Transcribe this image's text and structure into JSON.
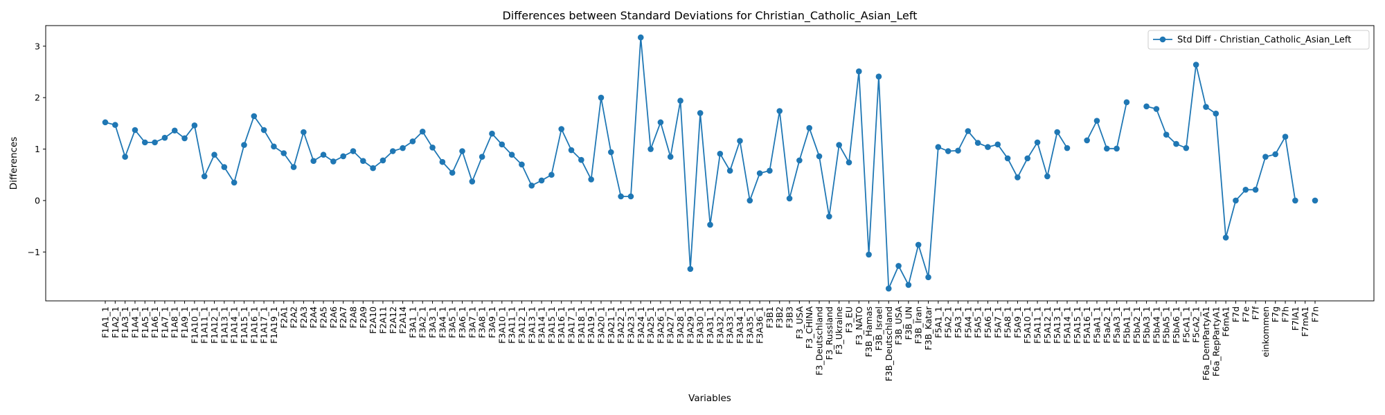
{
  "chart_data": {
    "type": "line",
    "title": "Differences between Standard Deviations for Christian_Catholic_Asian_Left",
    "xlabel": "Variables",
    "ylabel": "Differences",
    "ylim": [
      -1.95,
      3.4
    ],
    "yticks": [
      -1,
      0,
      1,
      2,
      3
    ],
    "ytick_labels": [
      "−1",
      "0",
      "1",
      "2",
      "3"
    ],
    "grid": false,
    "legend_position": "top-right",
    "color": "#1f77b4",
    "categories": [
      "F1A1_1",
      "F1A2_1",
      "F1A3_1",
      "F1A4_1",
      "F1A5_1",
      "F1A6_1",
      "F1A7_1",
      "F1A8_1",
      "F1A9_1",
      "F1A10_1",
      "F1A11_1",
      "F1A12_1",
      "F1A13_1",
      "F1A14_1",
      "F1A15_1",
      "F1A16_1",
      "F1A17_1",
      "F1A19_1",
      "F2A1",
      "F2A2",
      "F2A3",
      "F2A4",
      "F2A5",
      "F2A6",
      "F2A7",
      "F2A8",
      "F2A9",
      "F2A10",
      "F2A11",
      "F2A12",
      "F2A14",
      "F3A1_1",
      "F3A2_1",
      "F3A3_1",
      "F3A4_1",
      "F3A5_1",
      "F3A6_1",
      "F3A7_1",
      "F3A8_1",
      "F3A9_1",
      "F3A10_1",
      "F3A11_1",
      "F3A12_1",
      "F3A13_1",
      "F3A14_1",
      "F3A15_1",
      "F3A16_1",
      "F3A17_1",
      "F3A18_1",
      "F3A19_1",
      "F3A20_1",
      "F3A21_1",
      "F3A22_1",
      "F3A23_1",
      "F3A24_1",
      "F3A25_1",
      "F3A26_1",
      "F3A27_1",
      "F3A28_1",
      "F3A29_1",
      "F3A30_1",
      "F3A31_1",
      "F3A32_1",
      "F3A33_1",
      "F3A34_1",
      "F3A35_1",
      "F3A36_1",
      "F3B1",
      "F3B2",
      "F3B3",
      "F3_USA",
      "F3_CHINA",
      "F3_Deutschland",
      "F3_Russland",
      "F3_Ukraine",
      "F3_EU",
      "F3_NATO",
      "F3B_Hamas",
      "F3B_Israel",
      "F3B_Deutschland",
      "F3B_USA",
      "F3B_UN",
      "F3B_Iran",
      "F3B_Katar",
      "F5A1_1",
      "F5A2_1",
      "F5A3_1",
      "F5A4_1",
      "F5A5_1",
      "F5A6_1",
      "F5A7_1",
      "F5A8_1",
      "F5A9_1",
      "F5A10_1",
      "F5A11_1",
      "F5A12_1",
      "F5A13_1",
      "F5A14_1",
      "F5A15_1",
      "F5A16_1",
      "F5aA1_1",
      "F5aA2_1",
      "F5aA3_1",
      "F5bA1_1",
      "F5bA2_1",
      "F5bA3_1",
      "F5bA4_1",
      "F5bA5_1",
      "F5bA6_1",
      "F5cA1_1",
      "F5cA2_1",
      "F6a_DemPartyA1",
      "F6a_RepPartyA1",
      "F6mA1",
      "F7d",
      "F7e",
      "F7f",
      "einkommen",
      "F7g",
      "F7h",
      "F7lA1",
      "F7mA1",
      "F7n"
    ],
    "series": [
      {
        "name": "Std Diff - Christian_Catholic_Asian_Left",
        "values": [
          1.52,
          1.47,
          0.85,
          1.37,
          1.13,
          1.13,
          1.22,
          1.36,
          1.21,
          1.46,
          0.47,
          0.89,
          0.65,
          0.35,
          1.08,
          1.64,
          1.37,
          1.05,
          0.92,
          0.65,
          1.33,
          0.77,
          0.89,
          0.76,
          0.86,
          0.96,
          0.77,
          0.63,
          0.78,
          0.96,
          1.02,
          1.15,
          1.34,
          1.03,
          0.75,
          0.54,
          0.96,
          0.37,
          0.85,
          1.3,
          1.09,
          0.89,
          0.7,
          0.29,
          0.39,
          0.5,
          1.39,
          0.98,
          0.79,
          0.41,
          2.0,
          0.94,
          0.08,
          0.08,
          3.17,
          1.0,
          1.52,
          0.85,
          1.94,
          -1.33,
          1.7,
          -0.47,
          0.91,
          0.58,
          1.16,
          0.0,
          0.53,
          0.58,
          1.74,
          0.04,
          0.78,
          1.41,
          0.86,
          -0.31,
          1.08,
          0.74,
          2.51,
          -1.05,
          2.41,
          -1.71,
          -1.27,
          -1.64,
          -0.86,
          -1.49,
          1.04,
          0.96,
          0.97,
          1.35,
          1.12,
          1.04,
          1.09,
          0.82,
          0.45,
          0.82,
          1.13,
          0.47,
          1.33,
          1.02,
          null,
          1.17,
          1.55,
          1.01,
          1.01,
          1.91,
          null,
          1.83,
          1.78,
          1.28,
          1.1,
          1.02,
          2.64,
          1.82,
          1.69,
          -0.72,
          0.0,
          0.21,
          0.21,
          0.85,
          0.9,
          1.24,
          0.0,
          null,
          0.0
        ]
      }
    ]
  }
}
